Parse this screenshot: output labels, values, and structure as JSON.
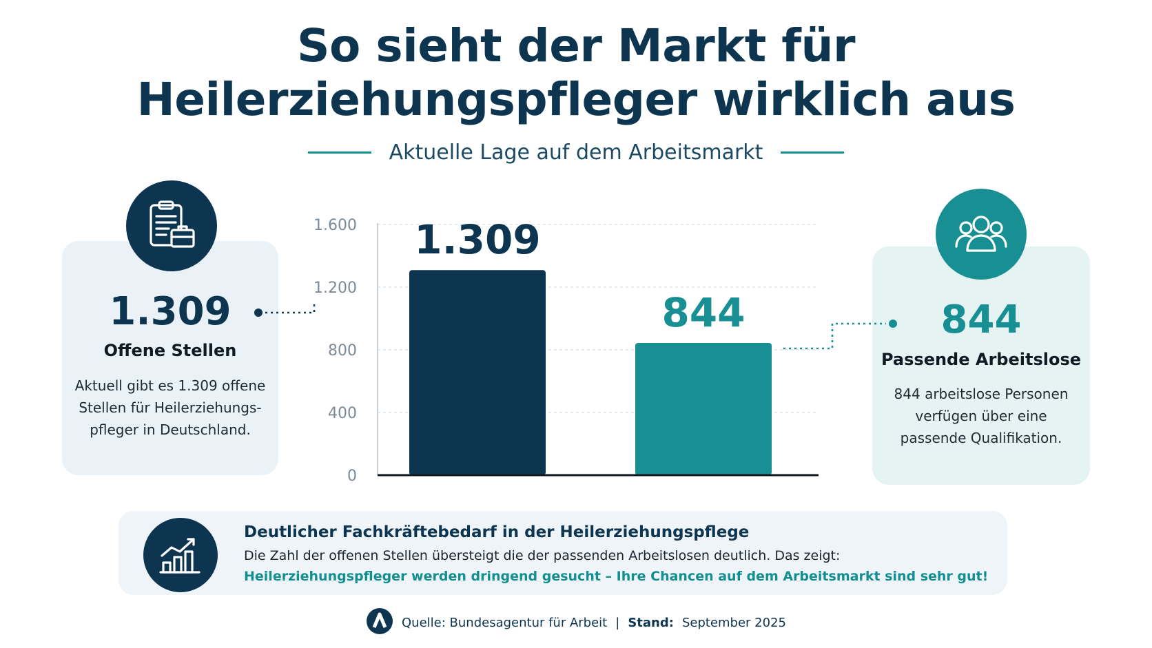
{
  "title": {
    "line1": "So sieht der Markt für",
    "line2": "Heilerziehungspfleger wirklich aus"
  },
  "subtitle": "Aktuelle Lage auf dem Arbeitsmarkt",
  "left_card": {
    "icon": "clipboard-briefcase-icon",
    "value": "1.309",
    "label": "Offene Stellen",
    "description": "Aktuell gibt es 1.309 offene Stellen für Heilerziehungs-pfleger in Deutschland."
  },
  "right_card": {
    "icon": "people-group-icon",
    "value": "844",
    "label": "Passende Arbeitslose",
    "description": "844 arbeitslose Personen verfügen über eine passende Qualifikation."
  },
  "chart_data": {
    "type": "bar",
    "categories": [
      "Offene Stellen",
      "Passende Arbeitslose"
    ],
    "values": [
      1309,
      844
    ],
    "value_labels": [
      "1.309",
      "844"
    ],
    "colors": [
      "#0d3550",
      "#178f93"
    ],
    "ylim": [
      0,
      1600
    ],
    "yticks": [
      0,
      400,
      800,
      1200,
      1600
    ],
    "ytick_labels": [
      "0",
      "400",
      "800",
      "1.200",
      "1.600"
    ],
    "grid": true
  },
  "bottom": {
    "icon": "growth-chart-icon",
    "title": "Deutlicher Fachkräftebedarf in der Heilerziehungspflege",
    "text": "Die Zahl der offenen Stellen übersteigt die der passenden Arbeitslosen deutlich. Das zeigt:",
    "highlight": "Heilerziehungspfleger werden dringend gesucht – Ihre Chancen auf dem Arbeitsmarkt sind sehr gut!"
  },
  "source": {
    "logo": "bundesagentur-logo-icon",
    "label": "Quelle: Bundesagentur für Arbeit",
    "separator": "|",
    "date_label": "Stand:",
    "date": "September 2025"
  },
  "colors": {
    "navy": "#0d3550",
    "teal": "#178f93"
  }
}
